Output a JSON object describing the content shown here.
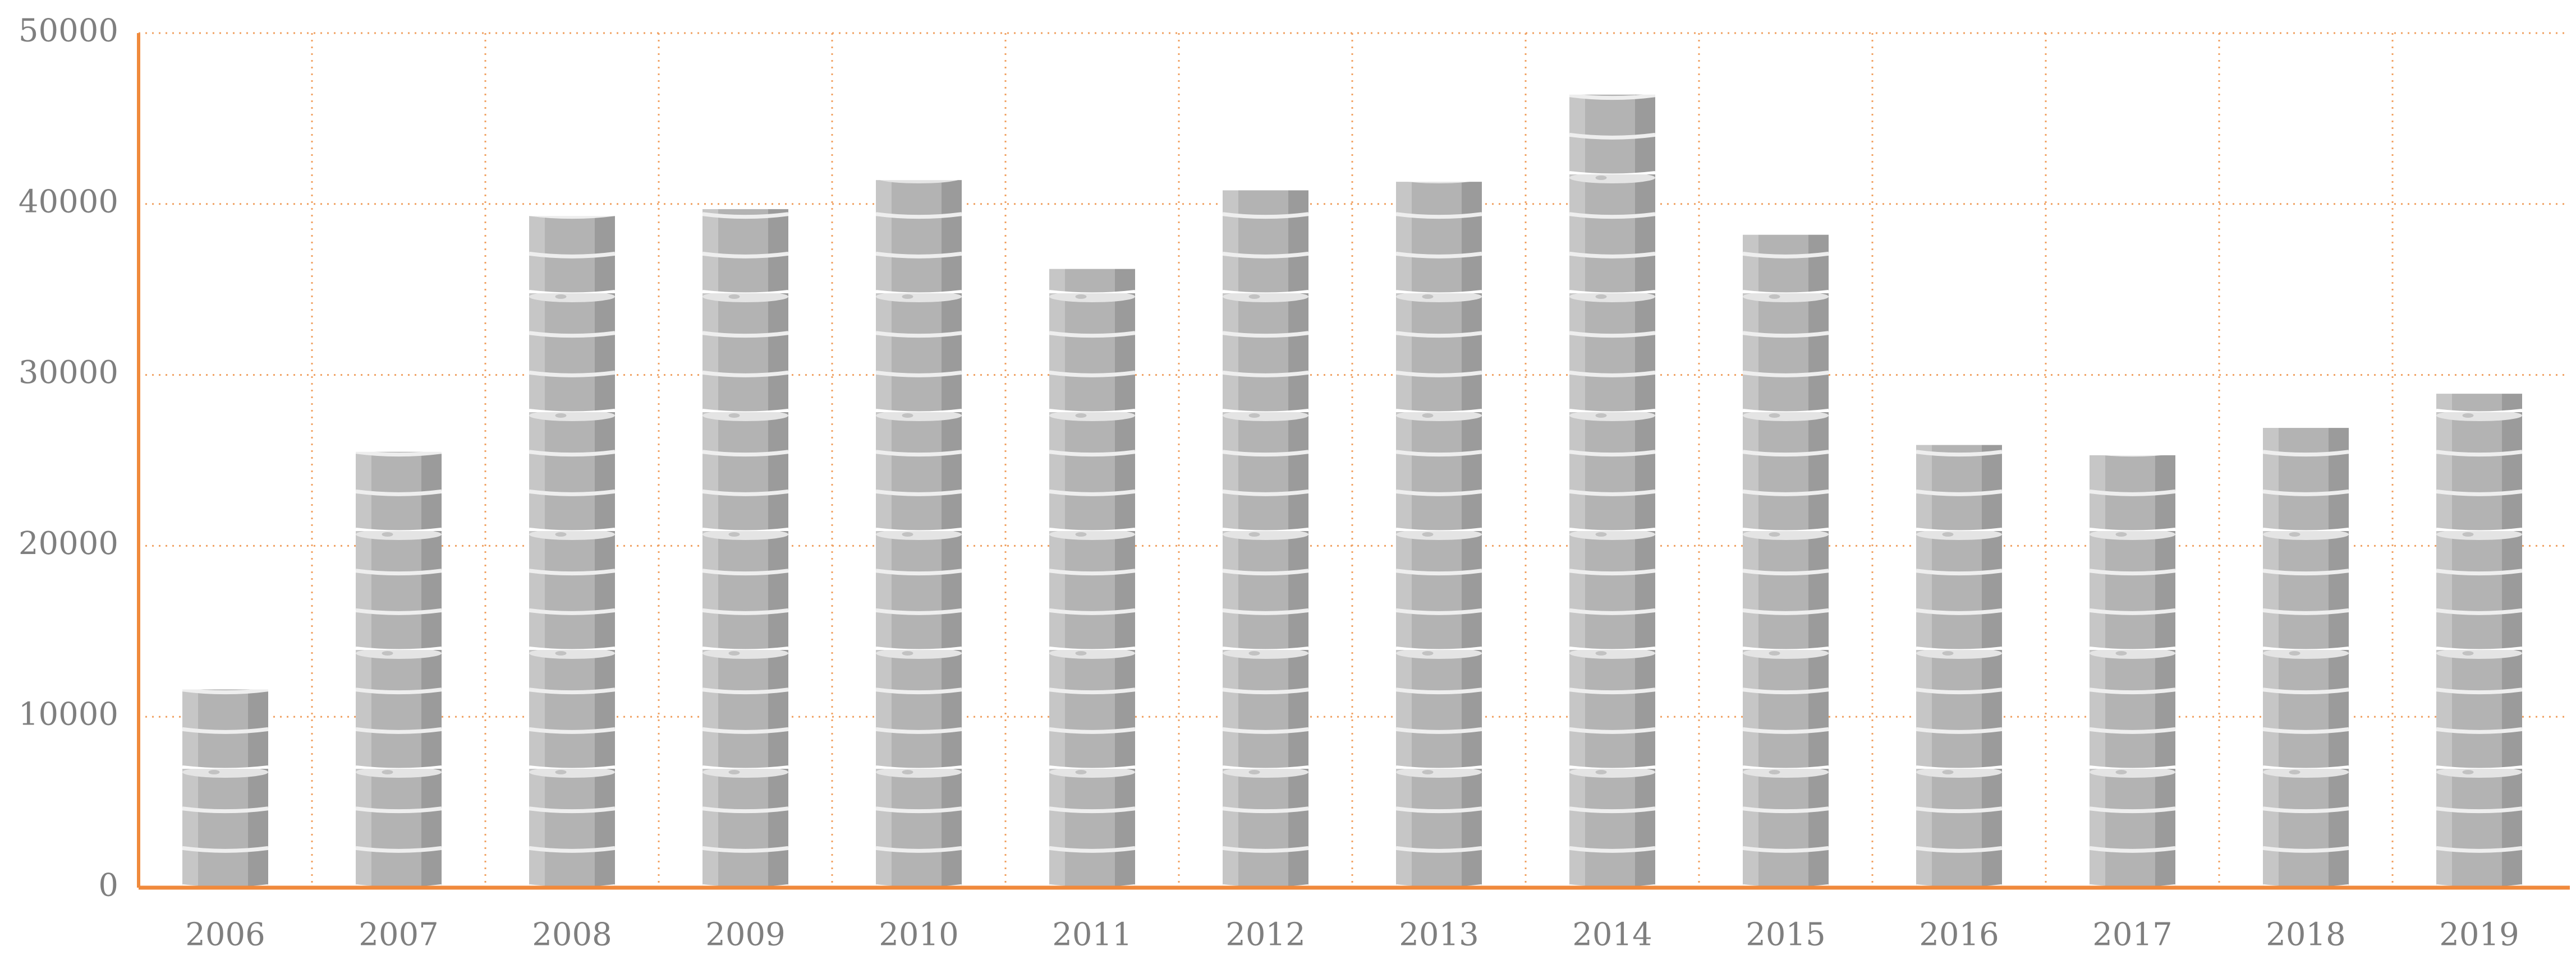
{
  "chart_data": {
    "type": "bar",
    "categories": [
      "2006",
      "2007",
      "2008",
      "2009",
      "2010",
      "2011",
      "2012",
      "2013",
      "2014",
      "2015",
      "2016",
      "2017",
      "2018",
      "2019"
    ],
    "values": [
      11600,
      25500,
      39300,
      39700,
      41400,
      36200,
      40800,
      41300,
      46400,
      38200,
      25900,
      25300,
      26900,
      28900
    ],
    "color": "#b3b3b3",
    "ylim": [
      0,
      50000
    ],
    "yticks": [
      0,
      10000,
      20000,
      30000,
      40000,
      50000
    ],
    "grid": true
  }
}
